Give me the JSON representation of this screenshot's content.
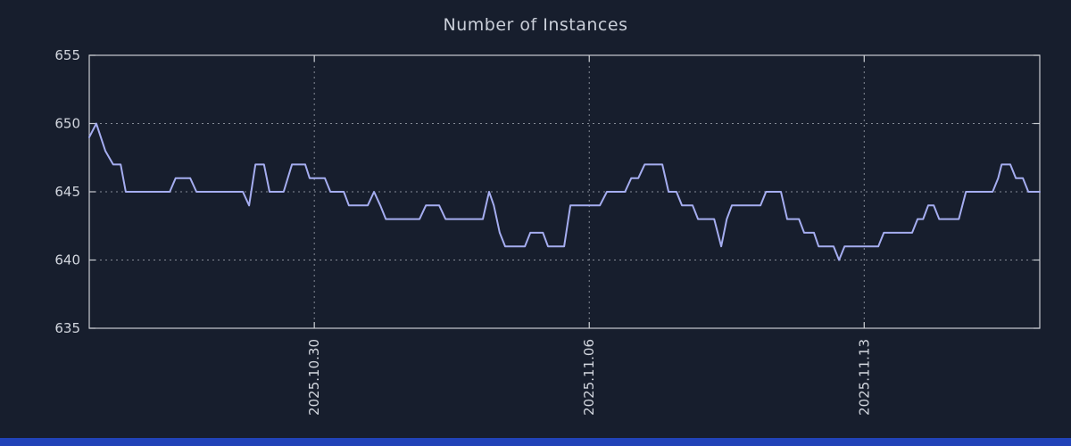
{
  "title": "Number of Instances",
  "colors": {
    "background": "#171e2d",
    "plot_border": "#c9ccd2",
    "grid": "#aab0ba",
    "line": "#a5adf0",
    "title_text": "#c9ced8",
    "tick_text": "#d2d6de",
    "footer_bar": "#2143b8"
  },
  "chart_data": {
    "type": "line",
    "title": "Number of Instances",
    "legend": "none",
    "grid": "dashed",
    "xlim": [
      0,
      24.2
    ],
    "ylim": [
      635,
      655
    ],
    "y_ticks": [
      635,
      640,
      645,
      650,
      655
    ],
    "x_ticks": [
      {
        "pos": 5.73,
        "label": "2025.10.30"
      },
      {
        "pos": 12.73,
        "label": "2025.11.06"
      },
      {
        "pos": 19.73,
        "label": "2025.11.13"
      }
    ],
    "x_unit": "days (ticks labeled with dates)",
    "ylabel": "",
    "xlabel": "",
    "series": [
      {
        "name": "instances",
        "points": [
          [
            0.0,
            649
          ],
          [
            0.18,
            650
          ],
          [
            0.41,
            648
          ],
          [
            0.61,
            647
          ],
          [
            0.8,
            647
          ],
          [
            0.93,
            645
          ],
          [
            2.05,
            645
          ],
          [
            2.2,
            646
          ],
          [
            2.57,
            646
          ],
          [
            2.73,
            645
          ],
          [
            3.91,
            645
          ],
          [
            4.07,
            644
          ],
          [
            4.23,
            647
          ],
          [
            4.45,
            647
          ],
          [
            4.59,
            645
          ],
          [
            4.95,
            645
          ],
          [
            5.16,
            647
          ],
          [
            5.5,
            647
          ],
          [
            5.61,
            646
          ],
          [
            6.0,
            646
          ],
          [
            6.14,
            645
          ],
          [
            6.48,
            645
          ],
          [
            6.61,
            644
          ],
          [
            7.09,
            644
          ],
          [
            7.25,
            645
          ],
          [
            7.41,
            644
          ],
          [
            7.55,
            643
          ],
          [
            8.41,
            643
          ],
          [
            8.57,
            644
          ],
          [
            8.91,
            644
          ],
          [
            9.07,
            643
          ],
          [
            10.02,
            643
          ],
          [
            10.18,
            645
          ],
          [
            10.3,
            644
          ],
          [
            10.45,
            642
          ],
          [
            10.59,
            641
          ],
          [
            11.09,
            641
          ],
          [
            11.23,
            642
          ],
          [
            11.55,
            642
          ],
          [
            11.68,
            641
          ],
          [
            12.09,
            641
          ],
          [
            12.25,
            644
          ],
          [
            13.0,
            644
          ],
          [
            13.18,
            645
          ],
          [
            13.64,
            645
          ],
          [
            13.8,
            646
          ],
          [
            13.98,
            646
          ],
          [
            14.14,
            647
          ],
          [
            14.59,
            647
          ],
          [
            14.75,
            645
          ],
          [
            14.95,
            645
          ],
          [
            15.09,
            644
          ],
          [
            15.36,
            644
          ],
          [
            15.5,
            643
          ],
          [
            15.91,
            643
          ],
          [
            16.09,
            641
          ],
          [
            16.23,
            643
          ],
          [
            16.36,
            644
          ],
          [
            17.09,
            644
          ],
          [
            17.23,
            645
          ],
          [
            17.61,
            645
          ],
          [
            17.77,
            643
          ],
          [
            18.07,
            643
          ],
          [
            18.2,
            642
          ],
          [
            18.45,
            642
          ],
          [
            18.57,
            641
          ],
          [
            18.95,
            641
          ],
          [
            19.09,
            640
          ],
          [
            19.23,
            641
          ],
          [
            20.09,
            641
          ],
          [
            20.23,
            642
          ],
          [
            20.95,
            642
          ],
          [
            21.09,
            643
          ],
          [
            21.23,
            643
          ],
          [
            21.36,
            644
          ],
          [
            21.5,
            644
          ],
          [
            21.64,
            643
          ],
          [
            22.14,
            643
          ],
          [
            22.32,
            645
          ],
          [
            23.0,
            645
          ],
          [
            23.14,
            646
          ],
          [
            23.23,
            647
          ],
          [
            23.45,
            647
          ],
          [
            23.59,
            646
          ],
          [
            23.77,
            646
          ],
          [
            23.91,
            645
          ],
          [
            24.2,
            645
          ]
        ]
      }
    ]
  }
}
